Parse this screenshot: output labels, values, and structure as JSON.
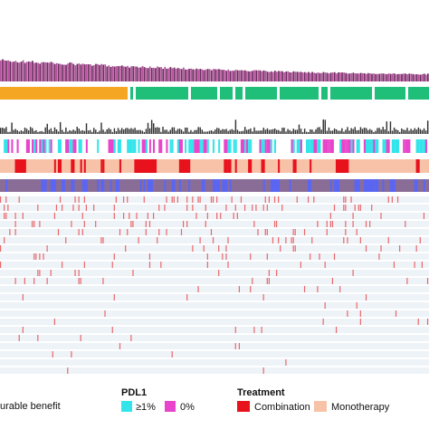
{
  "chart_data": {
    "type": "heatmap",
    "n_samples": 230,
    "tracks": [
      {
        "name": "",
        "kind": "bar",
        "color": "#8e3f78",
        "note": "descending per-sample values"
      },
      {
        "name": "",
        "kind": "categorical",
        "categories": [
          "orange",
          "green"
        ],
        "colors": [
          "#f5a623",
          "#1fbf7a"
        ]
      },
      {
        "name": "",
        "kind": "bar",
        "color": "#333333"
      },
      {
        "name": "PDL1",
        "kind": "categorical",
        "categories": [
          "≥1%",
          "0%"
        ],
        "colors": [
          "#33e5ea",
          "#e845cc"
        ]
      },
      {
        "name": "Treatment",
        "kind": "categorical",
        "categories": [
          "Combination",
          "Monotherapy"
        ],
        "colors": [
          "#e8121d",
          "#f7c2a8"
        ]
      },
      {
        "name": "",
        "kind": "categorical",
        "categories": [
          "purple",
          "blue"
        ],
        "colors": [
          "#8a6d96",
          "#5a66f2"
        ]
      }
    ],
    "mutation_matrix": {
      "rows": 22,
      "row_color": "#eef3f8",
      "mark_color": "#e8676a"
    }
  },
  "legend": {
    "benefit_label": "urable benefit",
    "pdl1_title": "PDL1",
    "pdl1_pos": "≥1%",
    "pdl1_neg": "0%",
    "treatment_title": "Treatment",
    "treatment_comb": "Combination",
    "treatment_mono": "Monotherapy",
    "colors": {
      "pdl1_pos": "#33e5ea",
      "pdl1_neg": "#e845cc",
      "combination": "#e8121d",
      "monotherapy": "#f7c2a8"
    }
  }
}
